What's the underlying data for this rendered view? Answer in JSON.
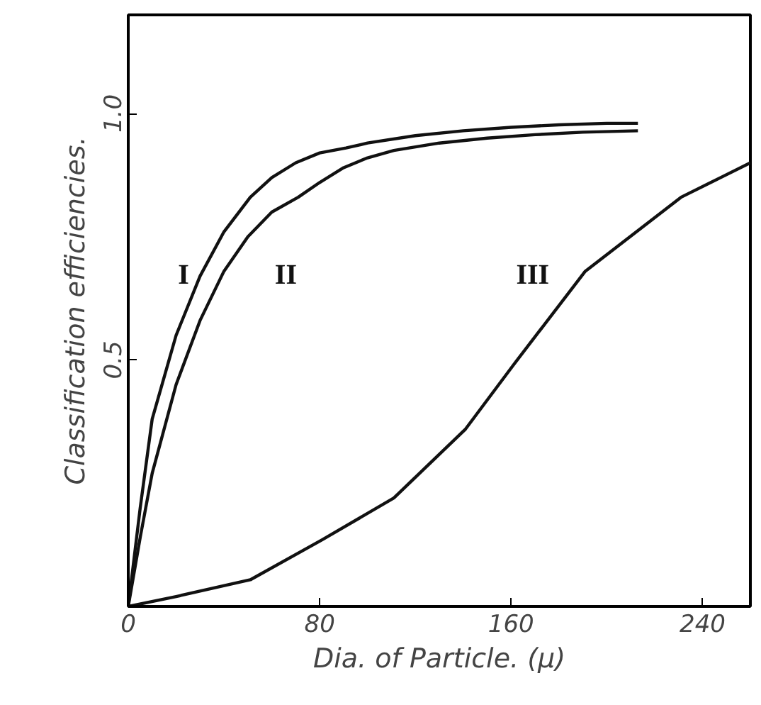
{
  "chart_data": {
    "type": "line",
    "xlabel": "Dia. of Particle. (μ)",
    "ylabel": "Classification efficiencies.",
    "xlim": [
      0,
      260
    ],
    "ylim": [
      0,
      1.2
    ],
    "xticks": [
      0,
      80,
      160,
      240
    ],
    "yticks": [
      0.5,
      {
        "value": 1,
        "label": "1.0"
      }
    ],
    "grid": false,
    "marker": "none",
    "line_style": "solid",
    "series": [
      {
        "name": "I",
        "color": "#111111",
        "x": [
          0,
          5,
          10,
          20,
          30,
          40,
          51,
          60,
          70,
          80,
          91,
          100,
          120,
          140,
          160,
          180,
          200,
          213
        ],
        "values": [
          0,
          0.2,
          0.38,
          0.55,
          0.67,
          0.76,
          0.83,
          0.87,
          0.9,
          0.92,
          0.93,
          0.94,
          0.955,
          0.965,
          0.972,
          0.977,
          0.98,
          0.98
        ]
      },
      {
        "name": "II",
        "color": "#111111",
        "x": [
          0,
          5,
          10,
          20,
          30,
          40,
          50,
          60,
          71,
          80,
          90,
          100,
          111,
          130,
          150,
          170,
          190,
          213
        ],
        "values": [
          0,
          0.14,
          0.27,
          0.45,
          0.58,
          0.68,
          0.75,
          0.8,
          0.83,
          0.86,
          0.89,
          0.91,
          0.925,
          0.94,
          0.95,
          0.957,
          0.962,
          0.965
        ]
      },
      {
        "name": "III",
        "color": "#111111",
        "x": [
          0,
          20,
          51,
          81,
          111,
          141,
          161,
          191,
          231,
          260
        ],
        "values": [
          0,
          0.02,
          0.054,
          0.135,
          0.22,
          0.36,
          0.49,
          0.68,
          0.83,
          0.9
        ]
      }
    ]
  }
}
